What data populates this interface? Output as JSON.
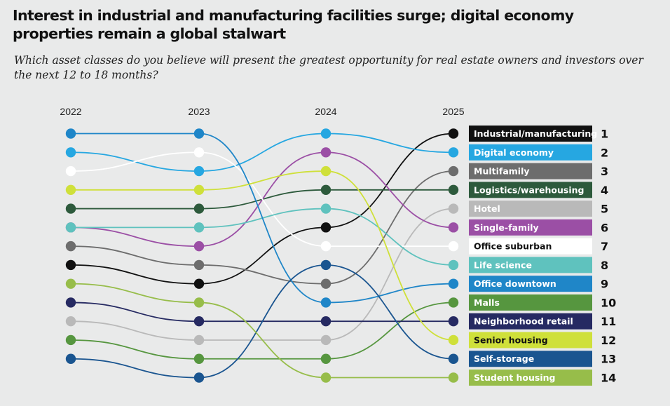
{
  "title": "Interest in industrial and manufacturing facilities surge; digital economy properties remain a global stalwart",
  "subtitle": "Which asset classes do you believe will present the greatest opportunity for real estate owners and investors over the next 12 to 18 months?",
  "chart_data": {
    "type": "bump",
    "x": [
      "2022",
      "2023",
      "2024",
      "2025"
    ],
    "series": [
      {
        "name": "Industrial/manufacturing",
        "color": "#111111",
        "ranks": [
          8,
          9,
          6,
          1
        ]
      },
      {
        "name": "Digital economy",
        "color": "#26a7e1",
        "ranks": [
          2,
          3,
          1,
          2
        ]
      },
      {
        "name": "Multifamily",
        "color": "#6d6d6d",
        "ranks": [
          7,
          8,
          9,
          3
        ]
      },
      {
        "name": "Logistics/warehousing",
        "color": "#2d5a3c",
        "ranks": [
          5,
          5,
          4,
          4
        ]
      },
      {
        "name": "Hotel",
        "color": "#b9b9b9",
        "ranks": [
          11,
          12,
          12,
          5
        ]
      },
      {
        "name": "Single-family",
        "color": "#9b4fa5",
        "ranks": [
          6,
          7,
          2,
          6
        ]
      },
      {
        "name": "Office suburban",
        "color": "#ffffff",
        "ranks": [
          3,
          2,
          7,
          7
        ]
      },
      {
        "name": "Life science",
        "color": "#5fc2be",
        "ranks": [
          6,
          6,
          5,
          8
        ]
      },
      {
        "name": "Office downtown",
        "color": "#1f86c8",
        "ranks": [
          1,
          1,
          10,
          9
        ]
      },
      {
        "name": "Malls",
        "color": "#56963f",
        "ranks": [
          12,
          13,
          13,
          10
        ]
      },
      {
        "name": "Neighborhood retail",
        "color": "#262a62",
        "ranks": [
          10,
          11,
          11,
          11
        ]
      },
      {
        "name": "Senior housing",
        "color": "#cfe03a",
        "ranks": [
          4,
          4,
          3,
          12
        ]
      },
      {
        "name": "Self-storage",
        "color": "#1a5590",
        "ranks": [
          13,
          14,
          8,
          13
        ]
      },
      {
        "name": "Student housing",
        "color": "#97bd4a",
        "ranks": [
          9,
          10,
          14,
          14
        ]
      }
    ]
  }
}
